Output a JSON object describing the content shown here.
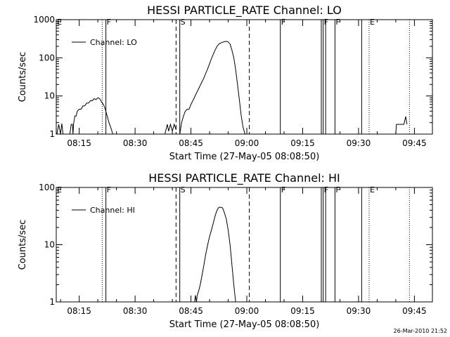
{
  "footer": {
    "timestamp": "26-Mar-2010 21:52"
  },
  "chart_data": [
    {
      "type": "line",
      "title": "HESSI PARTICLE_RATE Channel: LO",
      "xlabel": "Start Time (27-May-05 08:08:50)",
      "ylabel": "Counts/sec",
      "yscale": "log",
      "xlim": [
        "08:08:50",
        "09:49:50"
      ],
      "ylim": [
        1,
        1000
      ],
      "ytick_labels": [
        "1",
        "10",
        "100",
        "1000"
      ],
      "ytick_values": [
        1,
        10,
        100,
        1000
      ],
      "xtick_labels": [
        "08:15",
        "08:30",
        "08:45",
        "09:00",
        "09:15",
        "09:30",
        "09:45"
      ],
      "legend": {
        "position": "top-left",
        "entries": [
          "Channel: LO"
        ]
      },
      "series": [
        {
          "name": "Channel: LO",
          "segments": [
            [
              [
                "08:09:00",
                1
              ],
              [
                "08:09:30",
                1.8
              ],
              [
                "08:10:00",
                1
              ],
              [
                "08:10:20",
                1.9
              ],
              [
                "08:10:40",
                1
              ]
            ],
            [
              [
                "08:12:30",
                1
              ],
              [
                "08:12:50",
                1.8
              ],
              [
                "08:13:10",
                1.8
              ],
              [
                "08:13:20",
                1
              ],
              [
                "08:13:30",
                1.9
              ],
              [
                "08:13:50",
                3
              ],
              [
                "08:14:10",
                3
              ],
              [
                "08:14:30",
                4
              ],
              [
                "08:15:00",
                4.5
              ],
              [
                "08:15:30",
                4.5
              ],
              [
                "08:16:00",
                5.5
              ],
              [
                "08:16:30",
                5.5
              ],
              [
                "08:17:00",
                6.5
              ],
              [
                "08:17:30",
                6.5
              ],
              [
                "08:18:00",
                7.5
              ],
              [
                "08:18:30",
                7.5
              ],
              [
                "08:19:00",
                8.5
              ],
              [
                "08:19:30",
                8
              ],
              [
                "08:20:00",
                9
              ],
              [
                "08:20:30",
                8.5
              ],
              [
                "08:21:00",
                7
              ],
              [
                "08:21:30",
                6
              ],
              [
                "08:22:00",
                4.5
              ],
              [
                "08:22:30",
                3
              ],
              [
                "08:23:00",
                2
              ],
              [
                "08:23:40",
                1.3
              ],
              [
                "08:24:00",
                1
              ]
            ],
            [
              [
                "08:38:00",
                1
              ],
              [
                "08:38:40",
                1.8
              ],
              [
                "08:39:00",
                1.2
              ],
              [
                "08:39:30",
                1.8
              ],
              [
                "08:40:00",
                1.2
              ],
              [
                "08:40:30",
                1.8
              ],
              [
                "08:41:00",
                1.3
              ]
            ],
            [
              [
                "08:42:00",
                1
              ],
              [
                "08:42:30",
                2
              ],
              [
                "08:43:00",
                3
              ],
              [
                "08:43:30",
                4
              ],
              [
                "08:44:00",
                4.5
              ],
              [
                "08:44:30",
                4.5
              ],
              [
                "08:45:00",
                6
              ],
              [
                "08:45:30",
                7.5
              ],
              [
                "08:46:00",
                9.5
              ],
              [
                "08:46:30",
                12
              ],
              [
                "08:47:00",
                15
              ],
              [
                "08:47:30",
                19
              ],
              [
                "08:48:00",
                24
              ],
              [
                "08:48:30",
                30
              ],
              [
                "08:49:00",
                40
              ],
              [
                "08:49:30",
                52
              ],
              [
                "08:50:00",
                70
              ],
              [
                "08:50:30",
                95
              ],
              [
                "08:51:00",
                125
              ],
              [
                "08:51:30",
                160
              ],
              [
                "08:52:00",
                200
              ],
              [
                "08:52:30",
                230
              ],
              [
                "08:53:00",
                245
              ],
              [
                "08:53:30",
                255
              ],
              [
                "08:54:00",
                265
              ],
              [
                "08:54:30",
                270
              ],
              [
                "08:55:00",
                260
              ],
              [
                "08:55:30",
                230
              ],
              [
                "08:56:00",
                160
              ],
              [
                "08:56:30",
                100
              ],
              [
                "08:57:00",
                50
              ],
              [
                "08:57:30",
                20
              ],
              [
                "08:58:00",
                8
              ],
              [
                "08:58:30",
                3
              ],
              [
                "08:59:00",
                1.5
              ],
              [
                "08:59:30",
                1
              ]
            ],
            [
              [
                "09:40:00",
                1
              ],
              [
                "09:40:10",
                1.8
              ],
              [
                "09:42:10",
                1.8
              ],
              [
                "09:42:20",
                2.1
              ],
              [
                "09:42:40",
                2.9
              ],
              [
                "09:43:00",
                1.8
              ]
            ]
          ]
        }
      ],
      "markers": [
        {
          "time": "08:08:50",
          "label": "E",
          "style": "solid"
        },
        {
          "time": "08:21:10",
          "label": "",
          "style": "dotted"
        },
        {
          "time": "08:22:10",
          "label": "F",
          "style": "solid"
        },
        {
          "time": "08:41:00",
          "label": "",
          "style": "dashed"
        },
        {
          "time": "08:42:00",
          "label": "S",
          "style": "solid"
        },
        {
          "time": "09:00:40",
          "label": "",
          "style": "dashed"
        },
        {
          "time": "09:09:00",
          "label": "F",
          "style": "solid"
        },
        {
          "time": "09:20:00",
          "label": "",
          "style": "solid"
        },
        {
          "time": "09:20:30",
          "label": "F",
          "style": "solid"
        },
        {
          "time": "09:21:10",
          "label": "",
          "style": "solid"
        },
        {
          "time": "09:23:40",
          "label": "F",
          "style": "solid"
        },
        {
          "time": "09:30:50",
          "label": "",
          "style": "solid"
        },
        {
          "time": "09:32:50",
          "label": "E",
          "style": "dotted"
        },
        {
          "time": "09:43:40",
          "label": "",
          "style": "dotted"
        }
      ]
    },
    {
      "type": "line",
      "title": "HESSI PARTICLE_RATE Channel: HI",
      "xlabel": "Start Time (27-May-05 08:08:50)",
      "ylabel": "Counts/sec",
      "yscale": "log",
      "xlim": [
        "08:08:50",
        "09:49:50"
      ],
      "ylim": [
        1,
        100
      ],
      "ytick_labels": [
        "1",
        "10",
        "100"
      ],
      "ytick_values": [
        1,
        10,
        100
      ],
      "xtick_labels": [
        "08:15",
        "08:30",
        "08:45",
        "09:00",
        "09:15",
        "09:30",
        "09:45"
      ],
      "legend": {
        "position": "top-left",
        "entries": [
          "Channel: HI"
        ]
      },
      "series": [
        {
          "name": "Channel: HI",
          "segments": [
            [
              [
                "08:46:00",
                1
              ],
              [
                "08:46:10",
                1.3
              ],
              [
                "08:46:30",
                1
              ],
              [
                "08:46:40",
                1.3
              ],
              [
                "08:47:00",
                1.5
              ],
              [
                "08:47:30",
                2
              ],
              [
                "08:48:00",
                3
              ],
              [
                "08:48:30",
                4.5
              ],
              [
                "08:49:00",
                7
              ],
              [
                "08:49:30",
                10
              ],
              [
                "08:50:00",
                14
              ],
              [
                "08:50:30",
                18
              ],
              [
                "08:51:00",
                24
              ],
              [
                "08:51:30",
                32
              ],
              [
                "08:52:00",
                40
              ],
              [
                "08:52:30",
                45
              ],
              [
                "08:53:00",
                45
              ],
              [
                "08:53:30",
                44
              ],
              [
                "08:54:00",
                36
              ],
              [
                "08:54:30",
                28
              ],
              [
                "08:55:00",
                18
              ],
              [
                "08:55:30",
                10
              ],
              [
                "08:56:00",
                4.5
              ],
              [
                "08:56:30",
                2
              ],
              [
                "08:57:00",
                1
              ]
            ]
          ]
        }
      ],
      "markers": [
        {
          "time": "08:08:50",
          "label": "E",
          "style": "solid"
        },
        {
          "time": "08:21:10",
          "label": "",
          "style": "dotted"
        },
        {
          "time": "08:22:10",
          "label": "F",
          "style": "solid"
        },
        {
          "time": "08:41:00",
          "label": "",
          "style": "dashed"
        },
        {
          "time": "08:42:00",
          "label": "S",
          "style": "solid"
        },
        {
          "time": "09:00:40",
          "label": "",
          "style": "dashed"
        },
        {
          "time": "09:09:00",
          "label": "F",
          "style": "solid"
        },
        {
          "time": "09:20:00",
          "label": "",
          "style": "solid"
        },
        {
          "time": "09:20:30",
          "label": "F",
          "style": "solid"
        },
        {
          "time": "09:21:10",
          "label": "",
          "style": "solid"
        },
        {
          "time": "09:23:40",
          "label": "F",
          "style": "solid"
        },
        {
          "time": "09:30:50",
          "label": "",
          "style": "solid"
        },
        {
          "time": "09:32:50",
          "label": "E",
          "style": "dotted"
        },
        {
          "time": "09:43:40",
          "label": "",
          "style": "dotted"
        }
      ]
    }
  ]
}
